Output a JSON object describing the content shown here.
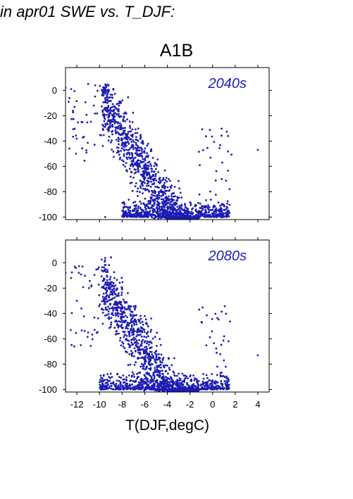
{
  "figure": {
    "title": "in apr01 SWE vs. T_DJF:",
    "scenario": "A1B",
    "xlabel": "T(DJF,degC)"
  },
  "colors": {
    "points": "#1c1cb4",
    "panel_label": "#2020c0",
    "axes": "#000000"
  },
  "chart_data": [
    {
      "type": "scatter",
      "panel_label": "2040s",
      "xlim": [
        -13,
        5
      ],
      "ylim": [
        -102,
        18
      ],
      "yticks": [
        0,
        -20,
        -40,
        -60,
        -80,
        -100
      ],
      "xticks": [
        -12,
        -10,
        -8,
        -6,
        -4,
        -2,
        0,
        2,
        4
      ],
      "xticklabels_shown": false,
      "approx_points": 1800,
      "distribution": "points spread from about -12 to 4 degC; dense diagonal band from near 0% at -9 degC to -100% around -4 to -1 degC; many points clustered at the -100 floor from -8 to 1.5 degC",
      "notable_points": [
        [
          -13,
          2
        ],
        [
          -12.5,
          1
        ],
        [
          -11,
          5
        ],
        [
          -10.5,
          -12
        ],
        [
          -9.5,
          -100
        ],
        [
          4,
          -47
        ],
        [
          1.5,
          -78
        ],
        [
          0.8,
          -70
        ],
        [
          1.2,
          -100
        ]
      ]
    },
    {
      "type": "scatter",
      "panel_label": "2080s",
      "xlim": [
        -13,
        5
      ],
      "ylim": [
        -102,
        18
      ],
      "yticks": [
        0,
        -20,
        -40,
        -60,
        -80,
        -100
      ],
      "xticks": [
        -12,
        -10,
        -8,
        -6,
        -4,
        -2,
        0,
        2,
        4
      ],
      "xticklabels": [
        "-12",
        "-10",
        "-8",
        "-6",
        "-4",
        "-2",
        "0",
        "2",
        "4"
      ],
      "approx_points": 1800,
      "distribution": "points shifted drier than 2040s; band from about -15% at -10 degC down to -100% near -4 to -2 degC; heavy clustering on the -100 floor from -10 to 1.5 degC",
      "notable_points": [
        [
          -13,
          -8
        ],
        [
          -12.5,
          -12
        ],
        [
          -11.5,
          -3
        ],
        [
          -9.5,
          2
        ],
        [
          4,
          -73
        ],
        [
          1,
          -77
        ],
        [
          -12,
          -30
        ],
        [
          -11,
          -55
        ]
      ]
    }
  ]
}
